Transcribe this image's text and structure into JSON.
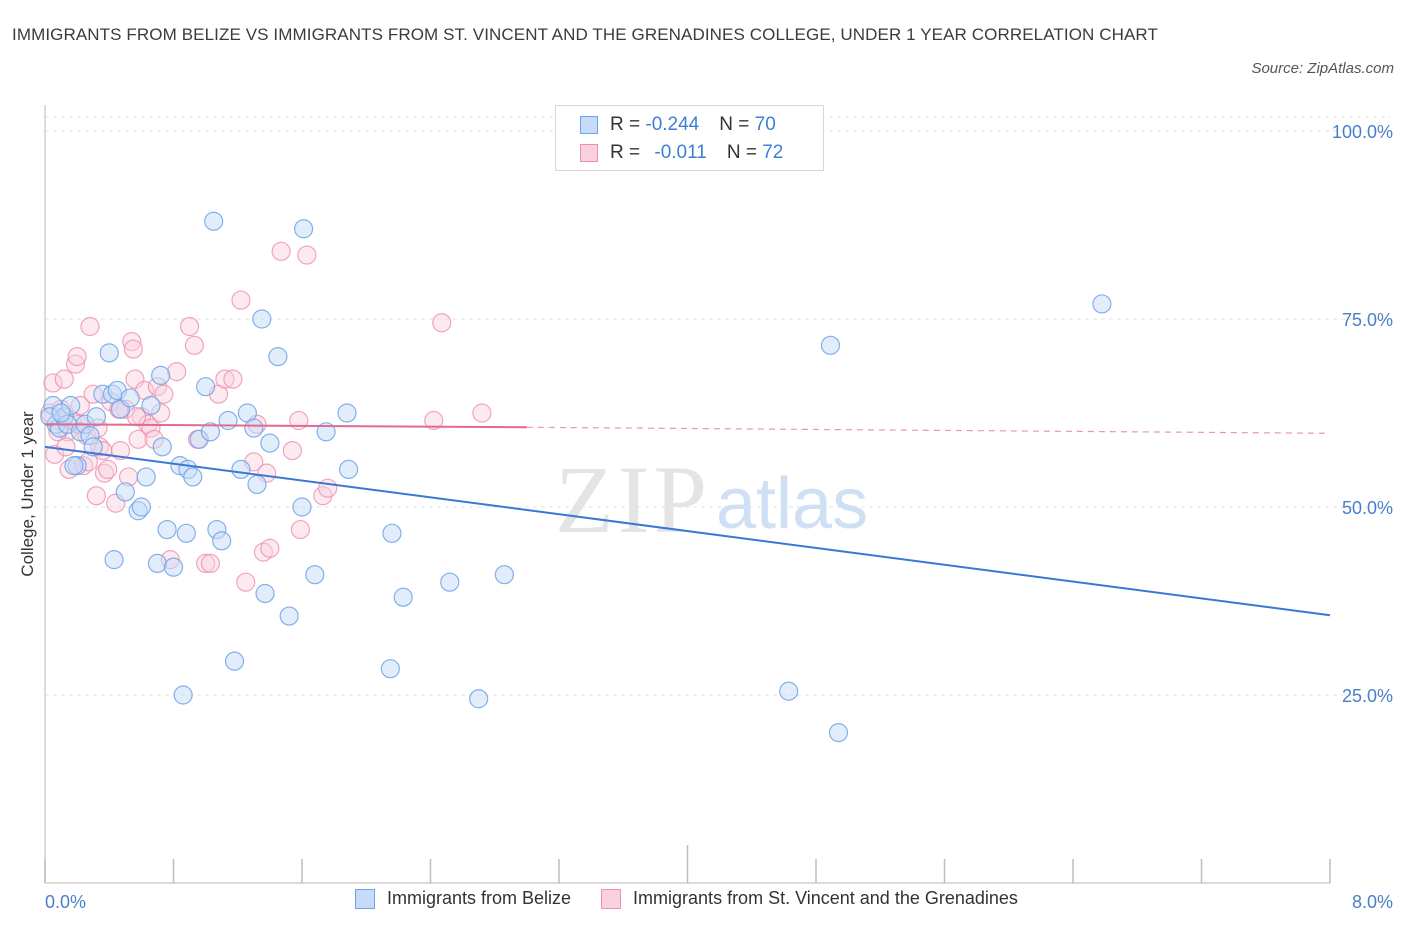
{
  "title": "IMMIGRANTS FROM BELIZE VS IMMIGRANTS FROM ST. VINCENT AND THE GRENADINES COLLEGE, UNDER 1 YEAR CORRELATION CHART",
  "source": "Source: ZipAtlas.com",
  "watermark": {
    "zip": "ZIP",
    "atlas": "atlas"
  },
  "legend": {
    "belize": {
      "r_label": "R = ",
      "r_value": "-0.244",
      "n_label": "N = ",
      "n_value": "70"
    },
    "svg": {
      "r_label": "R = ",
      "r_value": "-0.011",
      "n_label": "N = ",
      "n_value": "72"
    }
  },
  "colors": {
    "belize": "#6fa2e6",
    "belize_line": "#3a78d4",
    "svg": "#ee8fb0",
    "svg_line": "#e06a92"
  },
  "chart_data": {
    "type": "scatter",
    "title": "IMMIGRANTS FROM BELIZE VS IMMIGRANTS FROM ST. VINCENT AND THE GRENADINES COLLEGE, UNDER 1 YEAR CORRELATION CHART",
    "xlabel": "",
    "ylabel": "College, Under 1 year",
    "xlim": [
      0,
      8
    ],
    "ylim": [
      0,
      100
    ],
    "x_tick_labels": [
      "0.0%",
      "8.0%"
    ],
    "y_ticks": [
      25,
      50,
      75,
      100
    ],
    "y_tick_labels": [
      "25.0%",
      "50.0%",
      "75.0%",
      "100.0%"
    ],
    "series": [
      {
        "name": "Immigrants from Belize",
        "trend": {
          "x": [
            0,
            8
          ],
          "y": [
            58.0,
            35.6
          ]
        },
        "points": [
          [
            0.05,
            63.5
          ],
          [
            0.07,
            61.0
          ],
          [
            0.09,
            60.5
          ],
          [
            0.12,
            62.0
          ],
          [
            0.14,
            61.0
          ],
          [
            0.16,
            63.5
          ],
          [
            0.2,
            55.5
          ],
          [
            0.22,
            60.0
          ],
          [
            0.25,
            61.0
          ],
          [
            0.28,
            59.5
          ],
          [
            0.32,
            62.0
          ],
          [
            0.36,
            65.0
          ],
          [
            0.4,
            70.5
          ],
          [
            0.42,
            65.0
          ],
          [
            0.45,
            65.5
          ],
          [
            0.47,
            63.0
          ],
          [
            0.5,
            52.0
          ],
          [
            0.53,
            64.5
          ],
          [
            0.58,
            49.5
          ],
          [
            0.6,
            50.0
          ],
          [
            0.63,
            54.0
          ],
          [
            0.66,
            63.5
          ],
          [
            0.7,
            42.5
          ],
          [
            0.72,
            67.5
          ],
          [
            0.73,
            58.0
          ],
          [
            0.76,
            47.0
          ],
          [
            0.8,
            42.0
          ],
          [
            0.84,
            55.5
          ],
          [
            0.86,
            25.0
          ],
          [
            0.88,
            46.5
          ],
          [
            0.89,
            55.0
          ],
          [
            0.92,
            54.0
          ],
          [
            0.96,
            59.0
          ],
          [
            1.0,
            66.0
          ],
          [
            1.03,
            60.0
          ],
          [
            1.05,
            88.0
          ],
          [
            1.07,
            47.0
          ],
          [
            1.1,
            45.5
          ],
          [
            1.14,
            61.5
          ],
          [
            1.18,
            29.5
          ],
          [
            1.22,
            55.0
          ],
          [
            1.26,
            62.5
          ],
          [
            1.3,
            60.5
          ],
          [
            1.32,
            53.0
          ],
          [
            1.35,
            75.0
          ],
          [
            1.37,
            38.5
          ],
          [
            1.4,
            58.5
          ],
          [
            1.45,
            70.0
          ],
          [
            1.52,
            35.5
          ],
          [
            1.6,
            50.0
          ],
          [
            1.61,
            87.0
          ],
          [
            1.68,
            41.0
          ],
          [
            1.75,
            60.0
          ],
          [
            1.88,
            62.5
          ],
          [
            1.89,
            55.0
          ],
          [
            2.15,
            28.5
          ],
          [
            2.16,
            46.5
          ],
          [
            2.23,
            38.0
          ],
          [
            2.52,
            40.0
          ],
          [
            2.7,
            24.5
          ],
          [
            2.86,
            41.0
          ],
          [
            4.63,
            25.5
          ],
          [
            4.89,
            71.5
          ],
          [
            4.94,
            20.0
          ],
          [
            6.58,
            77.0
          ],
          [
            0.03,
            62.0
          ],
          [
            0.1,
            62.5
          ],
          [
            0.18,
            55.5
          ],
          [
            0.3,
            58.0
          ],
          [
            0.43,
            43.0
          ]
        ]
      },
      {
        "name": "Immigrants from St. Vincent and the Grenadines",
        "trend": {
          "x": [
            0,
            3.0
          ],
          "y": [
            61.0,
            60.6
          ],
          "dash_x": [
            3.0,
            8.0
          ],
          "dash_y": [
            60.6,
            59.8
          ]
        },
        "points": [
          [
            0.03,
            62.5
          ],
          [
            0.05,
            66.5
          ],
          [
            0.06,
            57.0
          ],
          [
            0.09,
            61.5
          ],
          [
            0.1,
            63.0
          ],
          [
            0.12,
            67.0
          ],
          [
            0.14,
            60.0
          ],
          [
            0.15,
            55.0
          ],
          [
            0.17,
            61.5
          ],
          [
            0.19,
            69.0
          ],
          [
            0.2,
            70.0
          ],
          [
            0.22,
            63.5
          ],
          [
            0.24,
            55.5
          ],
          [
            0.26,
            59.5
          ],
          [
            0.28,
            74.0
          ],
          [
            0.3,
            65.0
          ],
          [
            0.32,
            51.5
          ],
          [
            0.34,
            58.0
          ],
          [
            0.36,
            57.5
          ],
          [
            0.37,
            54.5
          ],
          [
            0.39,
            55.0
          ],
          [
            0.41,
            64.0
          ],
          [
            0.44,
            50.5
          ],
          [
            0.47,
            57.5
          ],
          [
            0.5,
            63.0
          ],
          [
            0.52,
            54.0
          ],
          [
            0.54,
            72.0
          ],
          [
            0.55,
            71.0
          ],
          [
            0.56,
            67.0
          ],
          [
            0.58,
            59.0
          ],
          [
            0.6,
            62.0
          ],
          [
            0.62,
            65.5
          ],
          [
            0.64,
            61.0
          ],
          [
            0.66,
            60.5
          ],
          [
            0.68,
            59.0
          ],
          [
            0.7,
            66.0
          ],
          [
            0.74,
            65.0
          ],
          [
            0.78,
            43.0
          ],
          [
            0.82,
            68.0
          ],
          [
            0.9,
            74.0
          ],
          [
            0.93,
            71.5
          ],
          [
            0.95,
            59.0
          ],
          [
            1.0,
            42.5
          ],
          [
            1.03,
            42.5
          ],
          [
            1.08,
            65.0
          ],
          [
            1.12,
            67.0
          ],
          [
            1.17,
            67.0
          ],
          [
            1.22,
            77.5
          ],
          [
            1.25,
            40.0
          ],
          [
            1.3,
            56.0
          ],
          [
            1.32,
            61.0
          ],
          [
            1.36,
            44.0
          ],
          [
            1.38,
            54.5
          ],
          [
            1.4,
            44.5
          ],
          [
            1.47,
            84.0
          ],
          [
            1.54,
            57.5
          ],
          [
            1.58,
            61.5
          ],
          [
            1.59,
            47.0
          ],
          [
            1.63,
            83.5
          ],
          [
            1.73,
            51.5
          ],
          [
            1.76,
            52.5
          ],
          [
            2.42,
            61.5
          ],
          [
            2.47,
            74.5
          ],
          [
            2.72,
            62.5
          ],
          [
            0.08,
            60.0
          ],
          [
            0.13,
            58.0
          ],
          [
            0.21,
            61.0
          ],
          [
            0.27,
            56.0
          ],
          [
            0.33,
            60.5
          ],
          [
            0.46,
            63.0
          ],
          [
            0.57,
            62.0
          ],
          [
            0.72,
            62.5
          ]
        ]
      }
    ],
    "legend_entries": [
      "Immigrants from Belize",
      "Immigrants from St. Vincent and the Grenadines"
    ]
  }
}
